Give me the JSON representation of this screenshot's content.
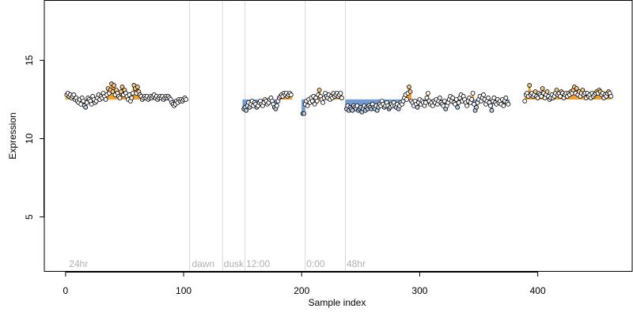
{
  "chart_data": {
    "type": "scatter",
    "xlabel": "Sample index",
    "ylabel": "Expression",
    "xlim": [
      -18,
      480
    ],
    "ylim": [
      1.5,
      18.8
    ],
    "xticks": [
      0,
      100,
      200,
      300,
      400
    ],
    "yticks": [
      5,
      10,
      15
    ],
    "grid": false,
    "divider_x": [
      105,
      133,
      152,
      203,
      237
    ],
    "region_labels": [
      {
        "text": "24hr",
        "x": 3
      },
      {
        "text": "dawn",
        "x": 107
      },
      {
        "text": "dusk",
        "x": 134
      },
      {
        "text": "12:00",
        "x": 153
      },
      {
        "text": "0:00",
        "x": 204
      },
      {
        "text": "48hr",
        "x": 238
      }
    ],
    "colors": {
      "low": "#6f9bd6",
      "high": "#f0a030",
      "point_outline": "#000000",
      "divider": "#d8d8d8"
    },
    "baseline": 12.5,
    "segments": [
      {
        "start": 1,
        "values": [
          12.8,
          12.9,
          12.7,
          12.8,
          12.6,
          12.7,
          12.8,
          12.5,
          12.6,
          12.4,
          12.3,
          12.5,
          12.2,
          12.6,
          12.4,
          12.1,
          12.0,
          12.3,
          12.6,
          12.5,
          12.4,
          12.2,
          12.7,
          12.5,
          12.3,
          12.4,
          12.6,
          12.8,
          12.5,
          12.7,
          12.6,
          12.9,
          12.7,
          12.5,
          12.8,
          13.2,
          12.9,
          13.1,
          13.5,
          13.0,
          13.4,
          12.8,
          13.1,
          12.9,
          12.7,
          12.6,
          13.0,
          13.3,
          12.8,
          13.1,
          12.9,
          12.7,
          12.5,
          12.8,
          12.4,
          12.6,
          12.9,
          13.4,
          13.2,
          12.9,
          13.3,
          13.0,
          12.8,
          12.7,
          12.5,
          12.6,
          12.7,
          12.6,
          12.7,
          12.5,
          12.6,
          12.7,
          12.6,
          12.7,
          12.8,
          12.6,
          12.7,
          12.5,
          12.6,
          12.7,
          12.6,
          12.7,
          12.5,
          12.6,
          12.7,
          12.6,
          12.7,
          12.6,
          12.5,
          12.3,
          12.2,
          12.1,
          12.2,
          12.4,
          12.3,
          12.5,
          12.4,
          12.5,
          12.4,
          12.5,
          12.6,
          12.5
        ]
      },
      {
        "start": 151,
        "values": [
          11.9,
          12.0,
          11.8,
          12.1,
          12.3,
          12.0,
          12.2,
          12.4,
          12.1,
          12.3,
          12.2,
          12.0,
          12.1,
          12.3,
          12.4,
          12.2,
          12.1,
          12.3,
          12.5,
          12.4,
          12.2,
          12.3,
          12.5,
          12.6,
          12.4,
          12.2,
          12.0,
          11.9,
          12.1,
          12.4,
          12.6,
          12.7,
          12.8,
          12.7,
          12.9,
          12.8,
          12.9,
          12.7,
          12.8,
          12.9,
          12.8
        ]
      },
      {
        "start": 201,
        "values": [
          11.6,
          11.6,
          12.2,
          12.4,
          12.1,
          12.5,
          12.3,
          12.6,
          12.4,
          12.7,
          12.2,
          12.6,
          12.4,
          12.8,
          13.1,
          12.7,
          12.5,
          12.3,
          12.6,
          12.9,
          12.7,
          12.6,
          12.8,
          12.5,
          12.7,
          12.6,
          12.9,
          12.7,
          12.8,
          12.9,
          12.7,
          12.8,
          12.9,
          12.6
        ]
      },
      {
        "start": 238,
        "values": [
          11.9,
          12.1,
          11.8,
          12.0,
          11.9,
          11.8,
          12.1,
          12.0,
          11.9,
          12.1,
          11.8,
          11.9,
          12.0,
          11.7,
          11.9,
          12.1,
          11.8,
          12.0,
          11.9,
          12.1,
          12.0,
          11.9,
          12.2,
          12.0,
          11.9,
          12.1,
          11.8,
          12.0,
          12.2,
          12.1,
          12.4,
          12.2,
          12.0,
          12.1,
          12.3,
          12.1,
          11.9,
          12.0,
          12.2,
          12.1,
          12.3,
          12.1,
          12.0,
          12.2,
          11.9,
          12.1,
          12.3,
          12.2,
          12.4,
          12.6,
          12.8,
          12.5,
          12.9,
          13.3,
          13.0,
          12.4,
          12.3,
          12.1,
          12.4,
          12.2,
          12.0,
          12.3,
          12.5,
          12.2,
          12.4,
          12.3,
          12.1,
          12.3,
          12.6,
          12.9,
          12.4,
          12.2,
          12.3,
          12.1,
          12.4,
          12.3,
          12.5,
          12.2,
          12.4,
          12.6,
          12.3,
          12.2,
          12.1,
          12.4,
          11.9,
          12.1,
          12.3,
          12.5,
          12.7,
          12.4,
          12.6,
          12.3,
          12.2,
          12.5,
          12.0,
          12.3,
          12.6,
          12.8,
          12.4,
          12.7,
          12.5,
          12.3,
          12.1,
          12.4,
          12.6,
          12.3,
          12.5,
          12.9,
          12.2,
          11.8,
          12.0,
          12.3,
          12.5,
          12.7,
          12.4,
          12.6,
          12.8,
          12.5,
          12.2,
          12.4,
          12.6,
          12.3,
          12.1,
          11.8,
          12.4,
          12.6,
          12.3,
          12.2,
          12.5,
          12.3,
          12.4,
          12.2,
          12.5,
          12.1,
          12.4,
          12.6,
          12.3,
          12.2
        ]
      },
      {
        "start": 389,
        "values": [
          12.4,
          12.8,
          12.9,
          12.7,
          13.4,
          12.8,
          12.9,
          12.7,
          12.8,
          13.0,
          12.7,
          12.6,
          12.9,
          12.8,
          12.7,
          13.2,
          12.9,
          12.6,
          12.8,
          13.0,
          12.7,
          12.5,
          12.6,
          12.8,
          12.6,
          12.7,
          12.9,
          13.1,
          12.8,
          12.9,
          12.7,
          13.0,
          12.9,
          12.6,
          12.8,
          12.9,
          12.7,
          12.9,
          12.8,
          13.0,
          12.9,
          13.1,
          13.3,
          12.9,
          13.2,
          12.8,
          13.0,
          12.7,
          12.9,
          13.1,
          12.8,
          12.9,
          12.6,
          12.9,
          12.7,
          12.8,
          12.6,
          12.9,
          12.7,
          12.8,
          12.9,
          13.0,
          12.9,
          13.1,
          13.0,
          12.8,
          12.9,
          12.6,
          12.8,
          12.7,
          12.9,
          13.0,
          12.9,
          12.7
        ]
      }
    ]
  }
}
